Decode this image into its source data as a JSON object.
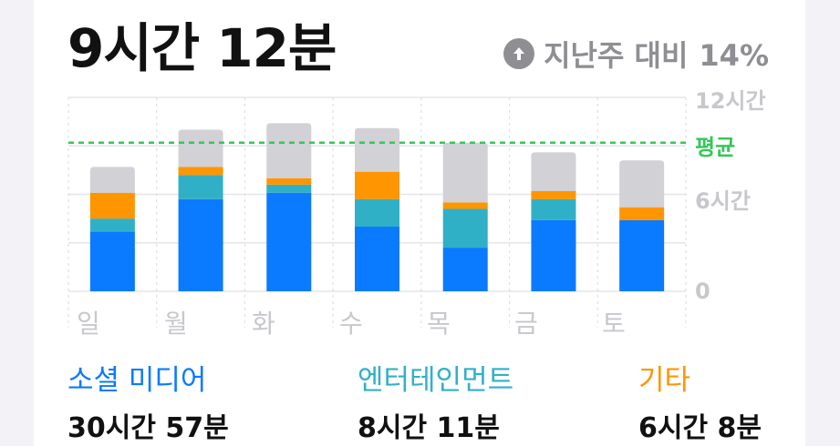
{
  "header": {
    "total_time": "9시간 12분",
    "trend_text": "지난주 대비",
    "trend_value": "14%",
    "trend_icon": "arrow-up-circle-icon"
  },
  "chart_data": {
    "type": "bar",
    "stacked": true,
    "categories": [
      "일",
      "월",
      "화",
      "수",
      "목",
      "금",
      "토"
    ],
    "y_ticks": [
      {
        "value": 12,
        "label": "12시간"
      },
      {
        "value": 6,
        "label": "6시간"
      },
      {
        "value": 0,
        "label": "0"
      }
    ],
    "ylim": [
      0,
      12
    ],
    "average": {
      "value": 9.2,
      "label": "평균",
      "color": "#34c759"
    },
    "series": [
      {
        "name": "소셜 미디어",
        "color": "#0a7aff",
        "values": [
          3.7,
          5.7,
          6.1,
          4.0,
          2.7,
          4.4,
          4.4
        ]
      },
      {
        "name": "엔터테인먼트",
        "color": "#30b0c7",
        "values": [
          0.8,
          1.5,
          0.5,
          1.7,
          2.4,
          1.3,
          0.0
        ]
      },
      {
        "name": "기타",
        "color": "#ff9500",
        "values": [
          1.6,
          0.5,
          0.4,
          1.7,
          0.4,
          0.5,
          0.8
        ]
      },
      {
        "color": "#d1d1d6",
        "values": [
          1.6,
          2.3,
          3.4,
          2.7,
          3.7,
          2.4,
          2.9
        ]
      }
    ],
    "legend": [
      {
        "name": "소셜 미디어",
        "total": "30시간 57분",
        "color": "#0a7aff"
      },
      {
        "name": "엔터테인먼트",
        "total": "8시간 11분",
        "color": "#30b0c7"
      },
      {
        "name": "기타",
        "total": "6시간 8분",
        "color": "#ff9500"
      }
    ]
  }
}
